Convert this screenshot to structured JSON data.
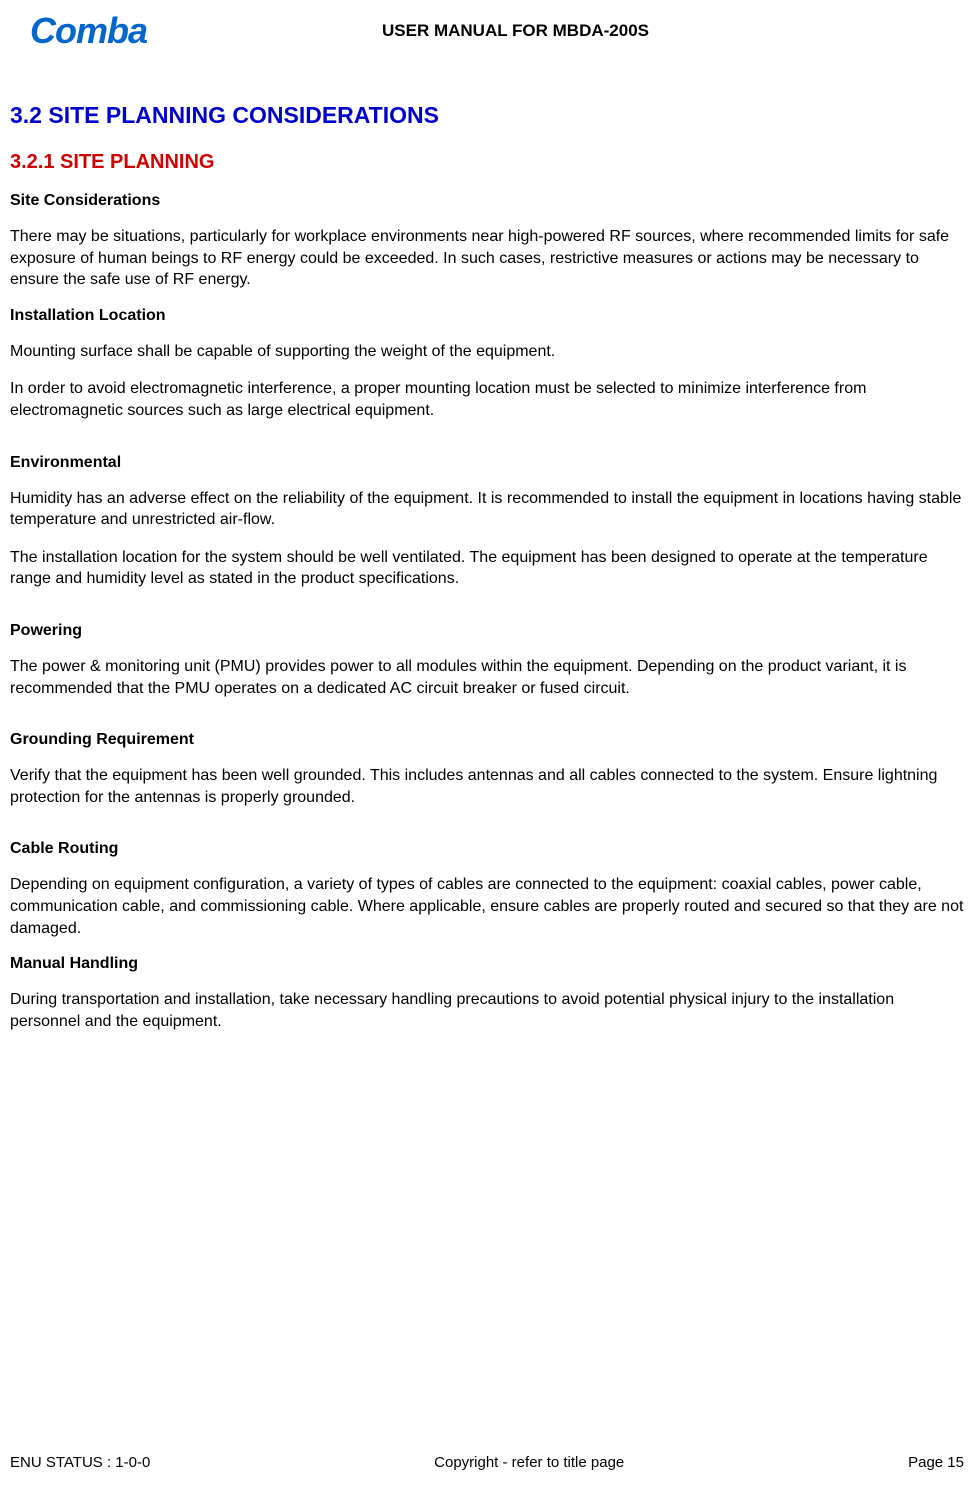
{
  "header": {
    "logo_text": "Comba",
    "title": "USER MANUAL FOR MBDA-200S"
  },
  "content": {
    "h1": "3.2   SITE PLANNING CONSIDERATIONS",
    "h2": "3.2.1   SITE PLANNING",
    "sections": [
      {
        "heading": "Site Considerations",
        "paragraphs": [
          "There may be situations, particularly for workplace environments near high-powered RF sources, where recommended limits for safe exposure of human beings to RF energy could be exceeded. In such cases, restrictive measures or actions may be necessary to ensure the safe use of RF energy."
        ]
      },
      {
        "heading": "Installation Location",
        "paragraphs": [
          "Mounting surface shall be capable of supporting the weight of the equipment.",
          "In order to avoid electromagnetic interference, a proper mounting location must be selected to minimize interference from electromagnetic sources such as large electrical equipment."
        ]
      },
      {
        "heading": "Environmental",
        "paragraphs": [
          "Humidity has an adverse effect on the reliability of the equipment. It is recommended to install the equipment in locations having stable temperature and unrestricted air-flow.",
          "The installation location for the system should be well ventilated. The equipment has been designed to operate at the temperature range and humidity level as stated in the product specifications."
        ]
      },
      {
        "heading": "Powering",
        "paragraphs": [
          "The power & monitoring unit (PMU) provides power to all modules within the equipment. Depending on the product variant, it is recommended that the PMU operates on a dedicated AC circuit breaker or fused circuit."
        ]
      },
      {
        "heading": "Grounding Requirement",
        "paragraphs": [
          "Verify that the equipment has been well grounded. This includes antennas and all cables connected to the system. Ensure lightning protection for the antennas is properly grounded."
        ]
      },
      {
        "heading": "Cable Routing",
        "paragraphs": [
          "Depending on equipment configuration, a variety of types of cables are connected to the equipment: coaxial cables, power cable, communication cable, and commissioning cable. Where applicable, ensure cables are properly routed and secured so that they are not damaged."
        ]
      },
      {
        "heading": "Manual Handling",
        "paragraphs": [
          "During transportation and installation, take necessary handling precautions to avoid potential physical injury to the installation personnel and the equipment."
        ]
      }
    ]
  },
  "footer": {
    "left": "ENU STATUS : 1-0-0",
    "center": "Copyright - refer to title page",
    "right": "Page 15"
  },
  "colors": {
    "heading1": "#0000cc",
    "heading2": "#cc0000",
    "text": "#000000",
    "logo": "#0066cc",
    "background": "#ffffff"
  },
  "typography": {
    "heading1_size": 23,
    "heading2_size": 20,
    "subheading_size": 16,
    "body_size": 16,
    "footer_size": 15,
    "logo_size": 36
  }
}
